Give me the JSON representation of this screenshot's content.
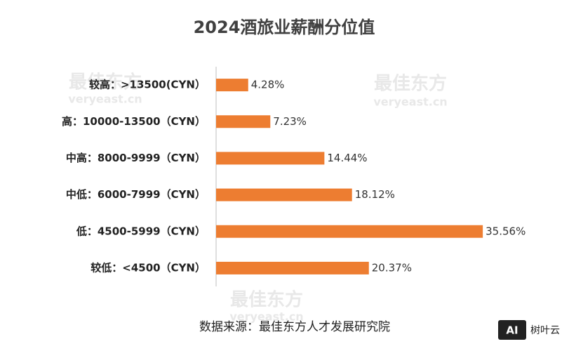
{
  "chart_data": {
    "type": "hbar",
    "title": "2024酒旅业薪酬分位值",
    "categories": [
      "较高：>13500(CYN）",
      "高：10000-13500（CYN）",
      "中高：8000-9999（CYN）",
      "中低：6000-7999（CYN）",
      "低：4500-5999（CYN）",
      "较低：<4500（CYN）"
    ],
    "values": [
      4.28,
      7.23,
      14.44,
      18.12,
      35.56,
      20.37
    ],
    "value_labels": [
      "4.28%",
      "7.23%",
      "14.44%",
      "18.12%",
      "35.56%",
      "20.37%"
    ],
    "color": "#ed7d31",
    "source": "数据来源：最佳东方人才发展研究院"
  },
  "watermark": {
    "brand": "最佳东方",
    "site": "veryeast.cn"
  },
  "logo": {
    "badge": "AI",
    "name": "树叶云"
  }
}
